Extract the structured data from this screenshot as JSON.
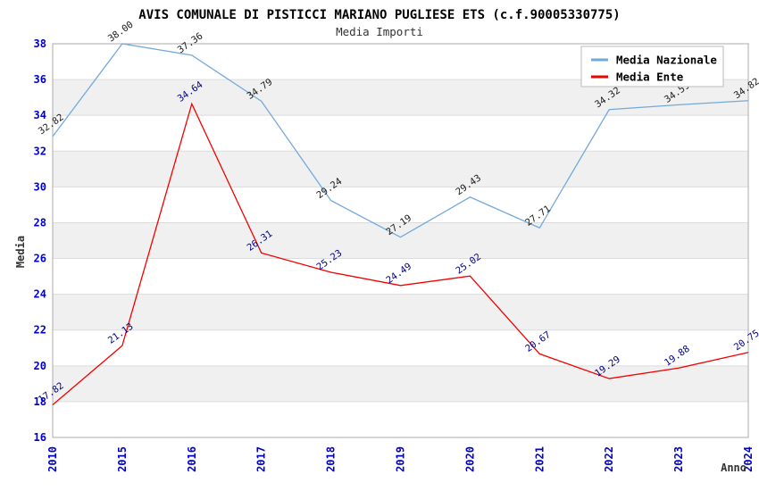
{
  "chart_data": {
    "type": "line",
    "title": "AVIS COMUNALE DI PISTICCI MARIANO PUGLIESE ETS (c.f.90005330775)",
    "subtitle": "Media Importi",
    "xlabel": "Anno",
    "ylabel": "Media",
    "x": [
      "2010",
      "2015",
      "2016",
      "2017",
      "2018",
      "2019",
      "2020",
      "2021",
      "2022",
      "2023",
      "2024"
    ],
    "ylim": [
      16,
      38
    ],
    "ytick_step": 2,
    "yticks": [
      "16",
      "18",
      "20",
      "22",
      "24",
      "26",
      "28",
      "30",
      "32",
      "34",
      "36",
      "38"
    ],
    "grid": "horizontal-bands",
    "legend_position": "top-right",
    "series": [
      {
        "name": "Media Nazionale",
        "color": "#74A9DC",
        "label_color": "#1a1a1a",
        "values": [
          32.82,
          38.0,
          37.36,
          34.79,
          29.24,
          27.19,
          29.43,
          27.71,
          34.32,
          34.59,
          34.82
        ],
        "labels": [
          "32.82",
          "38.00",
          "37.36",
          "34.79",
          "29.24",
          "27.19",
          "29.43",
          "27.71",
          "34.32",
          "34.59",
          "34.82"
        ]
      },
      {
        "name": "Media Ente",
        "color": "#F40000",
        "label_color": "#00008B",
        "values": [
          17.82,
          21.13,
          34.64,
          26.31,
          25.23,
          24.49,
          25.02,
          20.67,
          19.29,
          19.88,
          20.75
        ],
        "labels": [
          "17.82",
          "21.13",
          "34.64",
          "26.31",
          "25.23",
          "24.49",
          "25.02",
          "20.67",
          "19.29",
          "19.88",
          "20.75"
        ]
      }
    ],
    "colors": {
      "tick_label": "#0000CC",
      "band": "#F0F0F0",
      "grid": "#DCDCDC",
      "border": "#ABABAB",
      "title": "#000000",
      "subtitle": "#333333",
      "axis_title": "#333333",
      "legend_border": "#BBBBBB",
      "legend_bg": "#FFFFFF"
    }
  }
}
